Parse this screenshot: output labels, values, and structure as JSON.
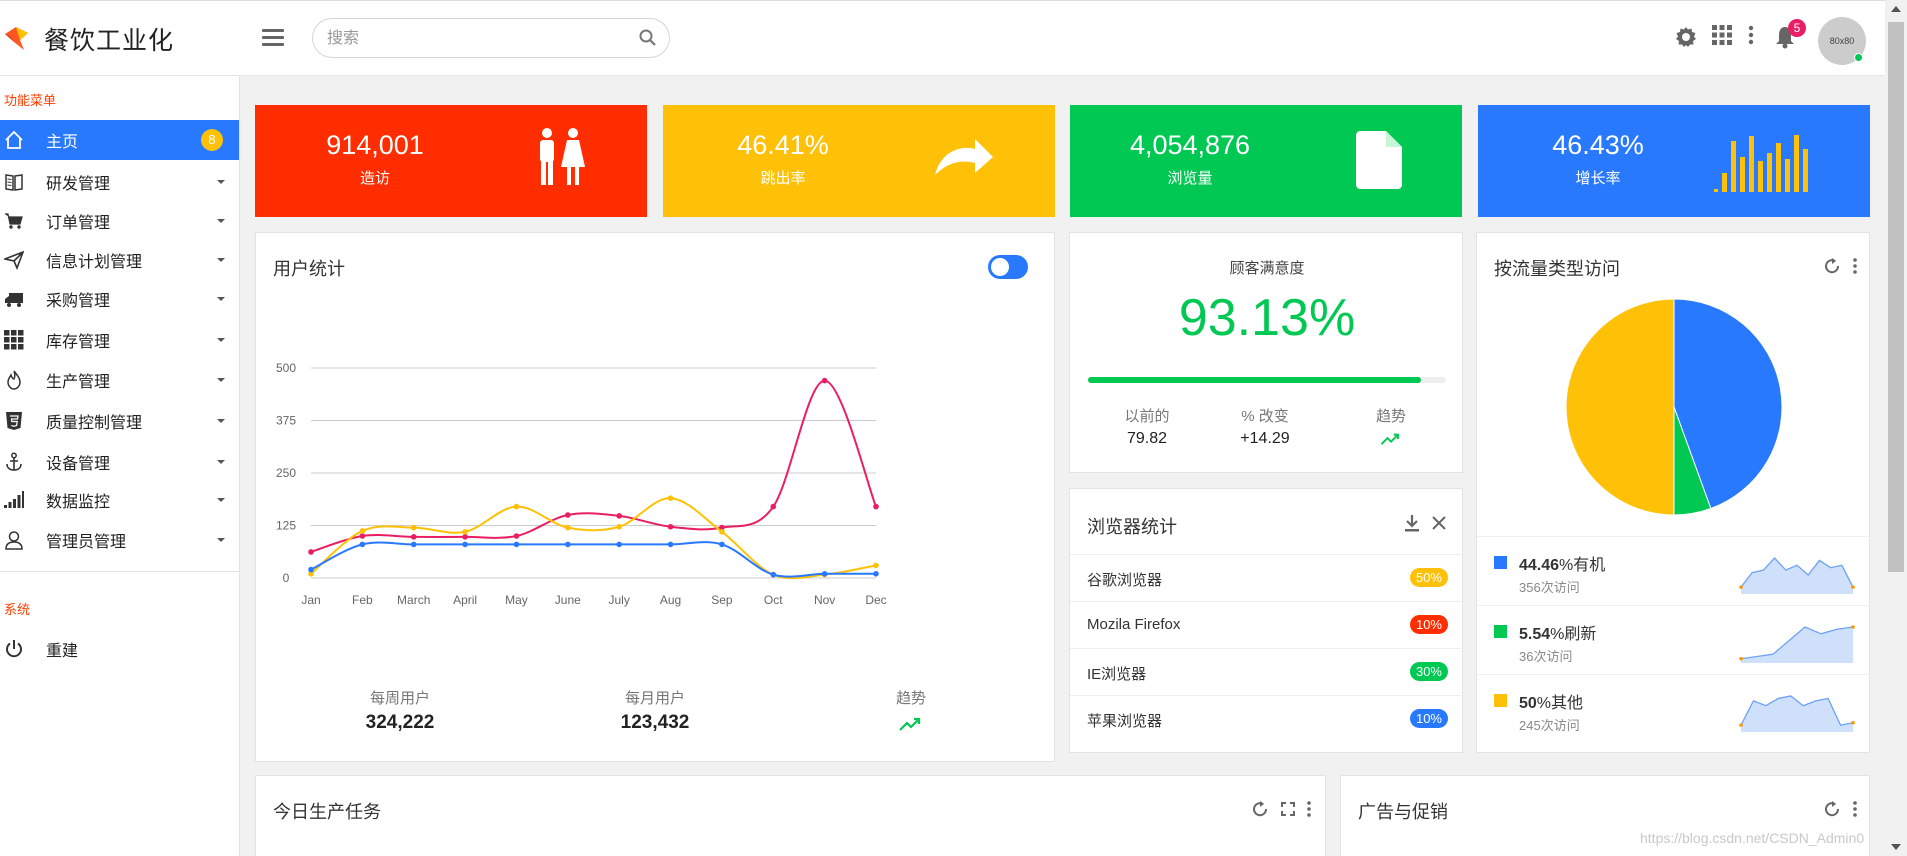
{
  "app": {
    "name": "餐饮工业化"
  },
  "search": {
    "placeholder": "搜索"
  },
  "header": {
    "notification_count": "5",
    "avatar_text": "80x80"
  },
  "sidebar": {
    "section_menu": "功能菜单",
    "items": [
      {
        "label": "主页",
        "icon": "home-icon",
        "badge": "8"
      },
      {
        "label": "研发管理",
        "icon": "book-icon"
      },
      {
        "label": "订单管理",
        "icon": "cart-icon"
      },
      {
        "label": "信息计划管理",
        "icon": "send-icon"
      },
      {
        "label": "采购管理",
        "icon": "truck-icon"
      },
      {
        "label": "库存管理",
        "icon": "grid-icon"
      },
      {
        "label": "生产管理",
        "icon": "fire-icon"
      },
      {
        "label": "质量控制管理",
        "icon": "html5-icon"
      },
      {
        "label": "设备管理",
        "icon": "anchor-icon"
      },
      {
        "label": "数据监控",
        "icon": "signal-icon"
      },
      {
        "label": "管理员管理",
        "icon": "user-icon"
      }
    ],
    "section_system": "系统",
    "system_items": [
      {
        "label": "重建",
        "icon": "power-icon"
      }
    ]
  },
  "tiles": [
    {
      "value": "914,001",
      "label": "造访",
      "color": "#ff2d00",
      "icon": "restroom-icon"
    },
    {
      "value": "46.41%",
      "label": "跳出率",
      "color": "#ffc107",
      "icon": "share-arrow-icon"
    },
    {
      "value": "4,054,876",
      "label": "浏览量",
      "color": "#00c853",
      "icon": "file-icon"
    },
    {
      "value": "46.43%",
      "label": "增长率",
      "color": "#2979ff",
      "icon": "bar-chart-icon"
    }
  ],
  "user_stats": {
    "title": "用户统计",
    "footer": [
      {
        "label": "每周用户",
        "value": "324,222"
      },
      {
        "label": "每月用户",
        "value": "123,432"
      },
      {
        "label": "趋势",
        "icon": "trending-up-icon"
      }
    ]
  },
  "chart_data": {
    "type": "line",
    "categories": [
      "Jan",
      "Feb",
      "March",
      "April",
      "May",
      "June",
      "July",
      "Aug",
      "Sep",
      "Oct",
      "Nov",
      "Dec"
    ],
    "yticks": [
      0,
      125,
      250,
      375,
      500
    ],
    "ylim": [
      0,
      500
    ],
    "grid": true,
    "series": [
      {
        "color": "#e91e63",
        "values": [
          62,
          100,
          98,
          98,
          100,
          150,
          148,
          122,
          120,
          170,
          470,
          170
        ]
      },
      {
        "color": "#ffc107",
        "values": [
          10,
          112,
          120,
          110,
          170,
          120,
          122,
          190,
          110,
          8,
          8,
          30
        ]
      },
      {
        "color": "#2979ff",
        "values": [
          20,
          80,
          80,
          80,
          80,
          80,
          80,
          80,
          80,
          8,
          10,
          10
        ]
      }
    ]
  },
  "satisfaction": {
    "title": "顾客满意度",
    "value": "93.13%",
    "progress": 0.9313,
    "prev_label": "以前的",
    "prev_value": "79.82",
    "change_label": "% 改变",
    "change_value": "+14.29",
    "trend_label": "趋势"
  },
  "browsers": {
    "title": "浏览器统计",
    "rows": [
      {
        "name": "谷歌浏览器",
        "pct": "50%",
        "color": "#ffc107"
      },
      {
        "name": "Mozila Firefox",
        "pct": "10%",
        "color": "#ff2d00"
      },
      {
        "name": "IE浏览器",
        "pct": "30%",
        "color": "#00c853"
      },
      {
        "name": "苹果浏览器",
        "pct": "10%",
        "color": "#2979ff"
      }
    ]
  },
  "traffic": {
    "title": "按流量类型访问",
    "pie": [
      {
        "value": 44.46,
        "color": "#2979ff"
      },
      {
        "value": 5.54,
        "color": "#00c853"
      },
      {
        "value": 50,
        "color": "#ffc107"
      }
    ],
    "rows": [
      {
        "pct": "44.46",
        "unit": "%有机",
        "sub": "356次访问",
        "color": "#2979ff",
        "spark": [
          2,
          8,
          9,
          14,
          9,
          11,
          7,
          13,
          10,
          11,
          2
        ]
      },
      {
        "pct": "5.54",
        "unit": "%刷新",
        "sub": "36次访问",
        "color": "#00c853",
        "spark": [
          1,
          2,
          3,
          9,
          15,
          12,
          14,
          15
        ]
      },
      {
        "pct": "50",
        "unit": "%其他",
        "sub": "245次访问",
        "color": "#ffc107",
        "spark": [
          2,
          12,
          10,
          13,
          14,
          10,
          12,
          13,
          2,
          3
        ]
      }
    ]
  },
  "production": {
    "title": "今日生产任务"
  },
  "promo": {
    "title": "广告与促销"
  },
  "watermark": "https://blog.csdn.net/CSDN_Admin0"
}
